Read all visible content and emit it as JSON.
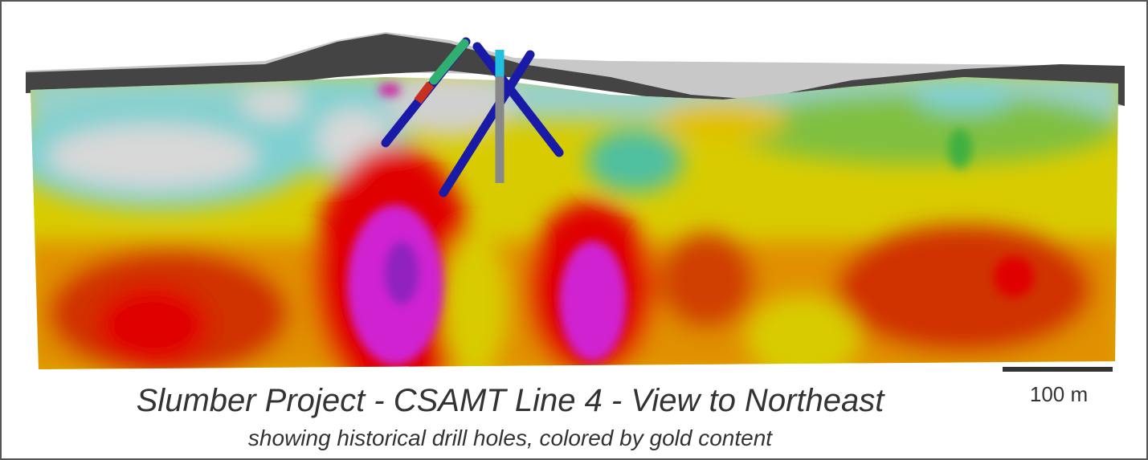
{
  "title": "Slumber Project - CSAMT Line 4 - View to Northeast",
  "subtitle": "showing historical drill holes, colored by gold content",
  "scale_bar": {
    "label": "100 m"
  }
}
